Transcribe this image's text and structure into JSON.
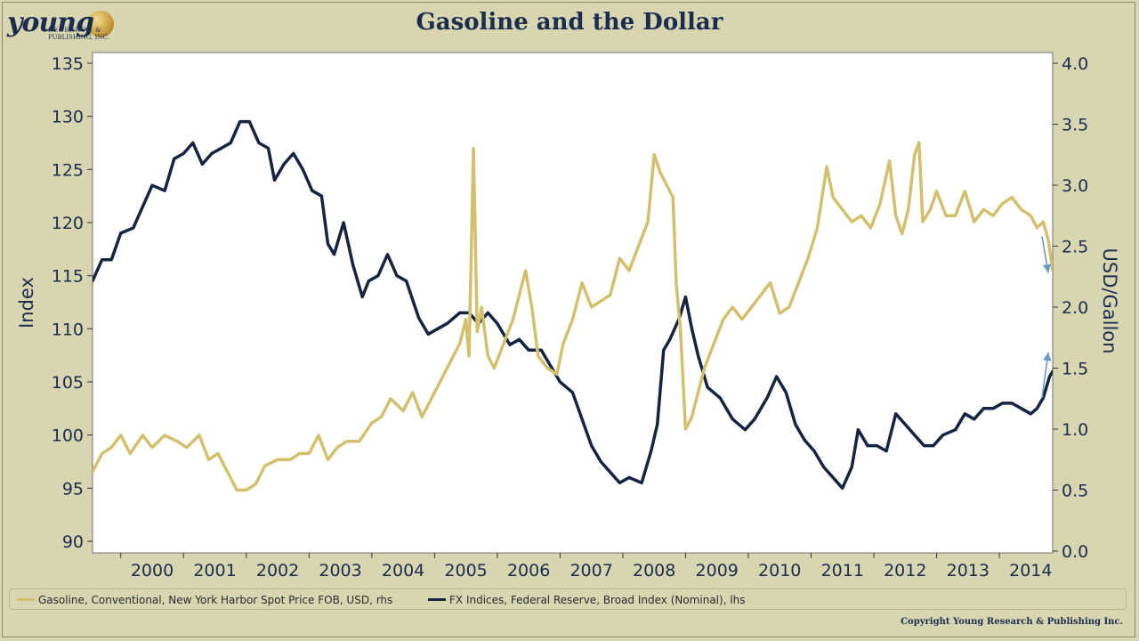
{
  "header": {
    "title": "Gasoline and the Dollar",
    "logo_word": "young",
    "logo_sub1": "RESEARCH &",
    "logo_sub2": "PUBLISHING, INC."
  },
  "legend": {
    "gasoline": "Gasoline, Conventional, New York Harbor Spot Price FOB, USD, rhs",
    "dollar": "FX Indices, Federal Reserve, Broad Index (Nominal), lhs"
  },
  "copyright": "Copyright Young Research & Publishing Inc.",
  "colors": {
    "background": "#d8d6b0",
    "plot_background": "#ffffff",
    "gasoline": "#d4c06c",
    "dollar": "#142442",
    "arrow": "#6a9cc8",
    "title": "#1b2c4f"
  },
  "chart_data": {
    "type": "line",
    "title": "Gasoline and the Dollar",
    "ylabel_left": "Index",
    "ylabel_right": "USD/Gallon",
    "ylim_left": [
      90,
      135
    ],
    "ylim_right": [
      0.0,
      4.0
    ],
    "yticks_left": [
      "90",
      "95",
      "100",
      "105",
      "110",
      "115",
      "120",
      "125",
      "130",
      "135"
    ],
    "yticks_right": [
      "0.0",
      "0.5",
      "1.0",
      "1.5",
      "2.0",
      "2.5",
      "3.0",
      "3.5",
      "4.0"
    ],
    "xlim": [
      1999.55,
      2014.85
    ],
    "xtick_labels": [
      "2000",
      "2001",
      "2002",
      "2003",
      "2004",
      "2005",
      "2006",
      "2007",
      "2008",
      "2009",
      "2010",
      "2011",
      "2012",
      "2013",
      "2014"
    ],
    "series": [
      {
        "name": "FX Indices, Federal Reserve, Broad Index (Nominal), lhs",
        "axis": "left",
        "points": [
          [
            1999.55,
            114.5
          ],
          [
            1999.7,
            116.5
          ],
          [
            1999.85,
            116.5
          ],
          [
            2000.0,
            119
          ],
          [
            2000.2,
            119.5
          ],
          [
            2000.35,
            121.5
          ],
          [
            2000.5,
            123.5
          ],
          [
            2000.7,
            123
          ],
          [
            2000.85,
            126
          ],
          [
            2001.0,
            126.5
          ],
          [
            2001.15,
            127.5
          ],
          [
            2001.3,
            125.5
          ],
          [
            2001.45,
            126.5
          ],
          [
            2001.6,
            127
          ],
          [
            2001.75,
            127.5
          ],
          [
            2001.9,
            129.5
          ],
          [
            2002.05,
            129.5
          ],
          [
            2002.2,
            127.5
          ],
          [
            2002.35,
            127
          ],
          [
            2002.45,
            124
          ],
          [
            2002.6,
            125.5
          ],
          [
            2002.75,
            126.5
          ],
          [
            2002.9,
            125
          ],
          [
            2003.05,
            123
          ],
          [
            2003.2,
            122.5
          ],
          [
            2003.3,
            118
          ],
          [
            2003.4,
            117
          ],
          [
            2003.55,
            120
          ],
          [
            2003.7,
            116
          ],
          [
            2003.85,
            113
          ],
          [
            2003.95,
            114.5
          ],
          [
            2004.1,
            115
          ],
          [
            2004.25,
            117
          ],
          [
            2004.4,
            115
          ],
          [
            2004.55,
            114.5
          ],
          [
            2004.75,
            111
          ],
          [
            2004.9,
            109.5
          ],
          [
            2005.05,
            110
          ],
          [
            2005.2,
            110.5
          ],
          [
            2005.4,
            111.5
          ],
          [
            2005.55,
            111.5
          ],
          [
            2005.7,
            110.5
          ],
          [
            2005.85,
            111.5
          ],
          [
            2006.0,
            110.5
          ],
          [
            2006.2,
            108.5
          ],
          [
            2006.35,
            109
          ],
          [
            2006.5,
            108
          ],
          [
            2006.7,
            108
          ],
          [
            2006.85,
            106.5
          ],
          [
            2007.0,
            105
          ],
          [
            2007.2,
            104
          ],
          [
            2007.35,
            101.5
          ],
          [
            2007.5,
            99
          ],
          [
            2007.65,
            97.5
          ],
          [
            2007.8,
            96.5
          ],
          [
            2007.95,
            95.5
          ],
          [
            2008.1,
            96
          ],
          [
            2008.3,
            95.5
          ],
          [
            2008.45,
            98.5
          ],
          [
            2008.55,
            101
          ],
          [
            2008.65,
            108
          ],
          [
            2008.75,
            109
          ],
          [
            2008.9,
            111
          ],
          [
            2009.0,
            113
          ],
          [
            2009.1,
            110
          ],
          [
            2009.2,
            107.5
          ],
          [
            2009.35,
            104.5
          ],
          [
            2009.55,
            103.5
          ],
          [
            2009.75,
            101.5
          ],
          [
            2009.95,
            100.5
          ],
          [
            2010.1,
            101.5
          ],
          [
            2010.3,
            103.5
          ],
          [
            2010.45,
            105.5
          ],
          [
            2010.6,
            104
          ],
          [
            2010.75,
            101
          ],
          [
            2010.9,
            99.5
          ],
          [
            2011.05,
            98.5
          ],
          [
            2011.2,
            97
          ],
          [
            2011.35,
            96
          ],
          [
            2011.5,
            95
          ],
          [
            2011.65,
            97
          ],
          [
            2011.75,
            100.5
          ],
          [
            2011.9,
            99
          ],
          [
            2012.05,
            99
          ],
          [
            2012.2,
            98.5
          ],
          [
            2012.35,
            102
          ],
          [
            2012.5,
            101
          ],
          [
            2012.65,
            100
          ],
          [
            2012.8,
            99
          ],
          [
            2012.95,
            99
          ],
          [
            2013.1,
            100
          ],
          [
            2013.3,
            100.5
          ],
          [
            2013.45,
            102
          ],
          [
            2013.6,
            101.5
          ],
          [
            2013.75,
            102.5
          ],
          [
            2013.9,
            102.5
          ],
          [
            2014.05,
            103
          ],
          [
            2014.2,
            103
          ],
          [
            2014.35,
            102.5
          ],
          [
            2014.5,
            102
          ],
          [
            2014.6,
            102.5
          ],
          [
            2014.7,
            103.5
          ],
          [
            2014.8,
            105.5
          ],
          [
            2014.85,
            106
          ]
        ]
      },
      {
        "name": "Gasoline, Conventional, New York Harbor Spot Price FOB, USD, rhs",
        "axis": "right",
        "points": [
          [
            1999.55,
            0.65
          ],
          [
            1999.7,
            0.8
          ],
          [
            1999.85,
            0.85
          ],
          [
            2000.0,
            0.95
          ],
          [
            2000.15,
            0.8
          ],
          [
            2000.35,
            0.95
          ],
          [
            2000.5,
            0.85
          ],
          [
            2000.7,
            0.95
          ],
          [
            2000.9,
            0.9
          ],
          [
            2001.05,
            0.85
          ],
          [
            2001.25,
            0.95
          ],
          [
            2001.4,
            0.75
          ],
          [
            2001.55,
            0.8
          ],
          [
            2001.7,
            0.65
          ],
          [
            2001.85,
            0.5
          ],
          [
            2002.0,
            0.5
          ],
          [
            2002.15,
            0.55
          ],
          [
            2002.3,
            0.7
          ],
          [
            2002.5,
            0.75
          ],
          [
            2002.7,
            0.75
          ],
          [
            2002.85,
            0.8
          ],
          [
            2003.0,
            0.8
          ],
          [
            2003.15,
            0.95
          ],
          [
            2003.3,
            0.75
          ],
          [
            2003.45,
            0.85
          ],
          [
            2003.6,
            0.9
          ],
          [
            2003.8,
            0.9
          ],
          [
            2004.0,
            1.05
          ],
          [
            2004.15,
            1.1
          ],
          [
            2004.3,
            1.25
          ],
          [
            2004.5,
            1.15
          ],
          [
            2004.65,
            1.3
          ],
          [
            2004.8,
            1.1
          ],
          [
            2004.95,
            1.25
          ],
          [
            2005.1,
            1.4
          ],
          [
            2005.25,
            1.55
          ],
          [
            2005.4,
            1.7
          ],
          [
            2005.5,
            1.9
          ],
          [
            2005.55,
            1.6
          ],
          [
            2005.62,
            3.3
          ],
          [
            2005.68,
            1.8
          ],
          [
            2005.75,
            2.0
          ],
          [
            2005.85,
            1.6
          ],
          [
            2005.95,
            1.5
          ],
          [
            2006.1,
            1.7
          ],
          [
            2006.25,
            1.9
          ],
          [
            2006.35,
            2.1
          ],
          [
            2006.45,
            2.3
          ],
          [
            2006.55,
            2.0
          ],
          [
            2006.65,
            1.6
          ],
          [
            2006.8,
            1.5
          ],
          [
            2006.95,
            1.45
          ],
          [
            2007.05,
            1.7
          ],
          [
            2007.2,
            1.9
          ],
          [
            2007.35,
            2.2
          ],
          [
            2007.5,
            2.0
          ],
          [
            2007.65,
            2.05
          ],
          [
            2007.8,
            2.1
          ],
          [
            2007.95,
            2.4
          ],
          [
            2008.1,
            2.3
          ],
          [
            2008.25,
            2.5
          ],
          [
            2008.4,
            2.7
          ],
          [
            2008.5,
            3.25
          ],
          [
            2008.6,
            3.1
          ],
          [
            2008.7,
            3.0
          ],
          [
            2008.8,
            2.9
          ],
          [
            2008.85,
            2.2
          ],
          [
            2008.92,
            1.8
          ],
          [
            2009.0,
            1.0
          ],
          [
            2009.1,
            1.1
          ],
          [
            2009.2,
            1.3
          ],
          [
            2009.3,
            1.5
          ],
          [
            2009.45,
            1.7
          ],
          [
            2009.6,
            1.9
          ],
          [
            2009.75,
            2.0
          ],
          [
            2009.9,
            1.9
          ],
          [
            2010.05,
            2.0
          ],
          [
            2010.2,
            2.1
          ],
          [
            2010.35,
            2.2
          ],
          [
            2010.5,
            1.95
          ],
          [
            2010.65,
            2.0
          ],
          [
            2010.8,
            2.2
          ],
          [
            2010.95,
            2.4
          ],
          [
            2011.1,
            2.65
          ],
          [
            2011.25,
            3.15
          ],
          [
            2011.35,
            2.9
          ],
          [
            2011.5,
            2.8
          ],
          [
            2011.65,
            2.7
          ],
          [
            2011.8,
            2.75
          ],
          [
            2011.95,
            2.65
          ],
          [
            2012.1,
            2.85
          ],
          [
            2012.25,
            3.2
          ],
          [
            2012.35,
            2.75
          ],
          [
            2012.45,
            2.6
          ],
          [
            2012.55,
            2.8
          ],
          [
            2012.65,
            3.25
          ],
          [
            2012.72,
            3.35
          ],
          [
            2012.78,
            2.7
          ],
          [
            2012.9,
            2.8
          ],
          [
            2013.0,
            2.95
          ],
          [
            2013.15,
            2.75
          ],
          [
            2013.3,
            2.75
          ],
          [
            2013.45,
            2.95
          ],
          [
            2013.6,
            2.7
          ],
          [
            2013.75,
            2.8
          ],
          [
            2013.9,
            2.75
          ],
          [
            2014.05,
            2.85
          ],
          [
            2014.2,
            2.9
          ],
          [
            2014.35,
            2.8
          ],
          [
            2014.5,
            2.75
          ],
          [
            2014.6,
            2.65
          ],
          [
            2014.7,
            2.7
          ],
          [
            2014.78,
            2.55
          ],
          [
            2014.85,
            2.3
          ]
        ]
      }
    ],
    "annotations": [
      {
        "type": "arrow",
        "direction": "down",
        "target_series": "Gasoline",
        "from": [
          2014.68,
          2.58
        ],
        "to": [
          2014.78,
          2.28
        ]
      },
      {
        "type": "arrow",
        "direction": "up",
        "target_series": "FX Indices",
        "from": [
          2014.68,
          103.5
        ],
        "to": [
          2014.78,
          107.8
        ]
      }
    ]
  }
}
